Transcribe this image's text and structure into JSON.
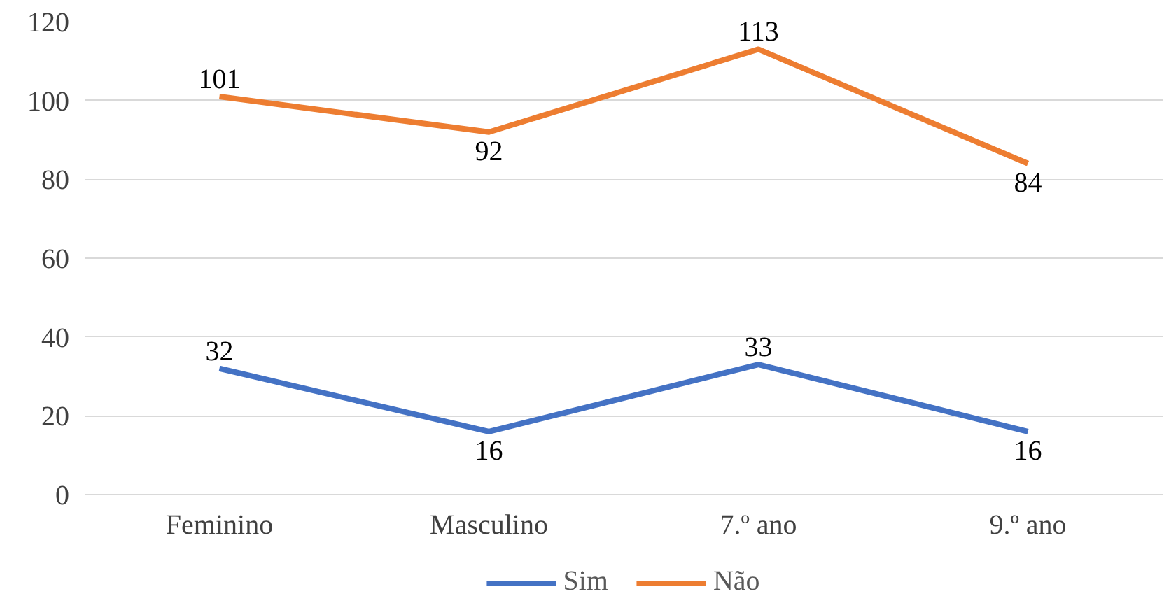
{
  "chart_data": {
    "type": "line",
    "categories": [
      "Feminino",
      "Masculino",
      "7.º ano",
      "9.º ano"
    ],
    "series": [
      {
        "name": "Sim",
        "color": "#4472c4",
        "values": [
          32,
          16,
          33,
          16
        ]
      },
      {
        "name": "Não",
        "color": "#ed7d31",
        "values": [
          101,
          92,
          113,
          84
        ]
      }
    ],
    "ylim": [
      0,
      120
    ],
    "yticks": [
      0,
      20,
      40,
      60,
      80,
      100,
      120
    ],
    "grid": "y",
    "legend": "bottom",
    "data_labels": true,
    "marker": "none",
    "line_style": "solid"
  }
}
